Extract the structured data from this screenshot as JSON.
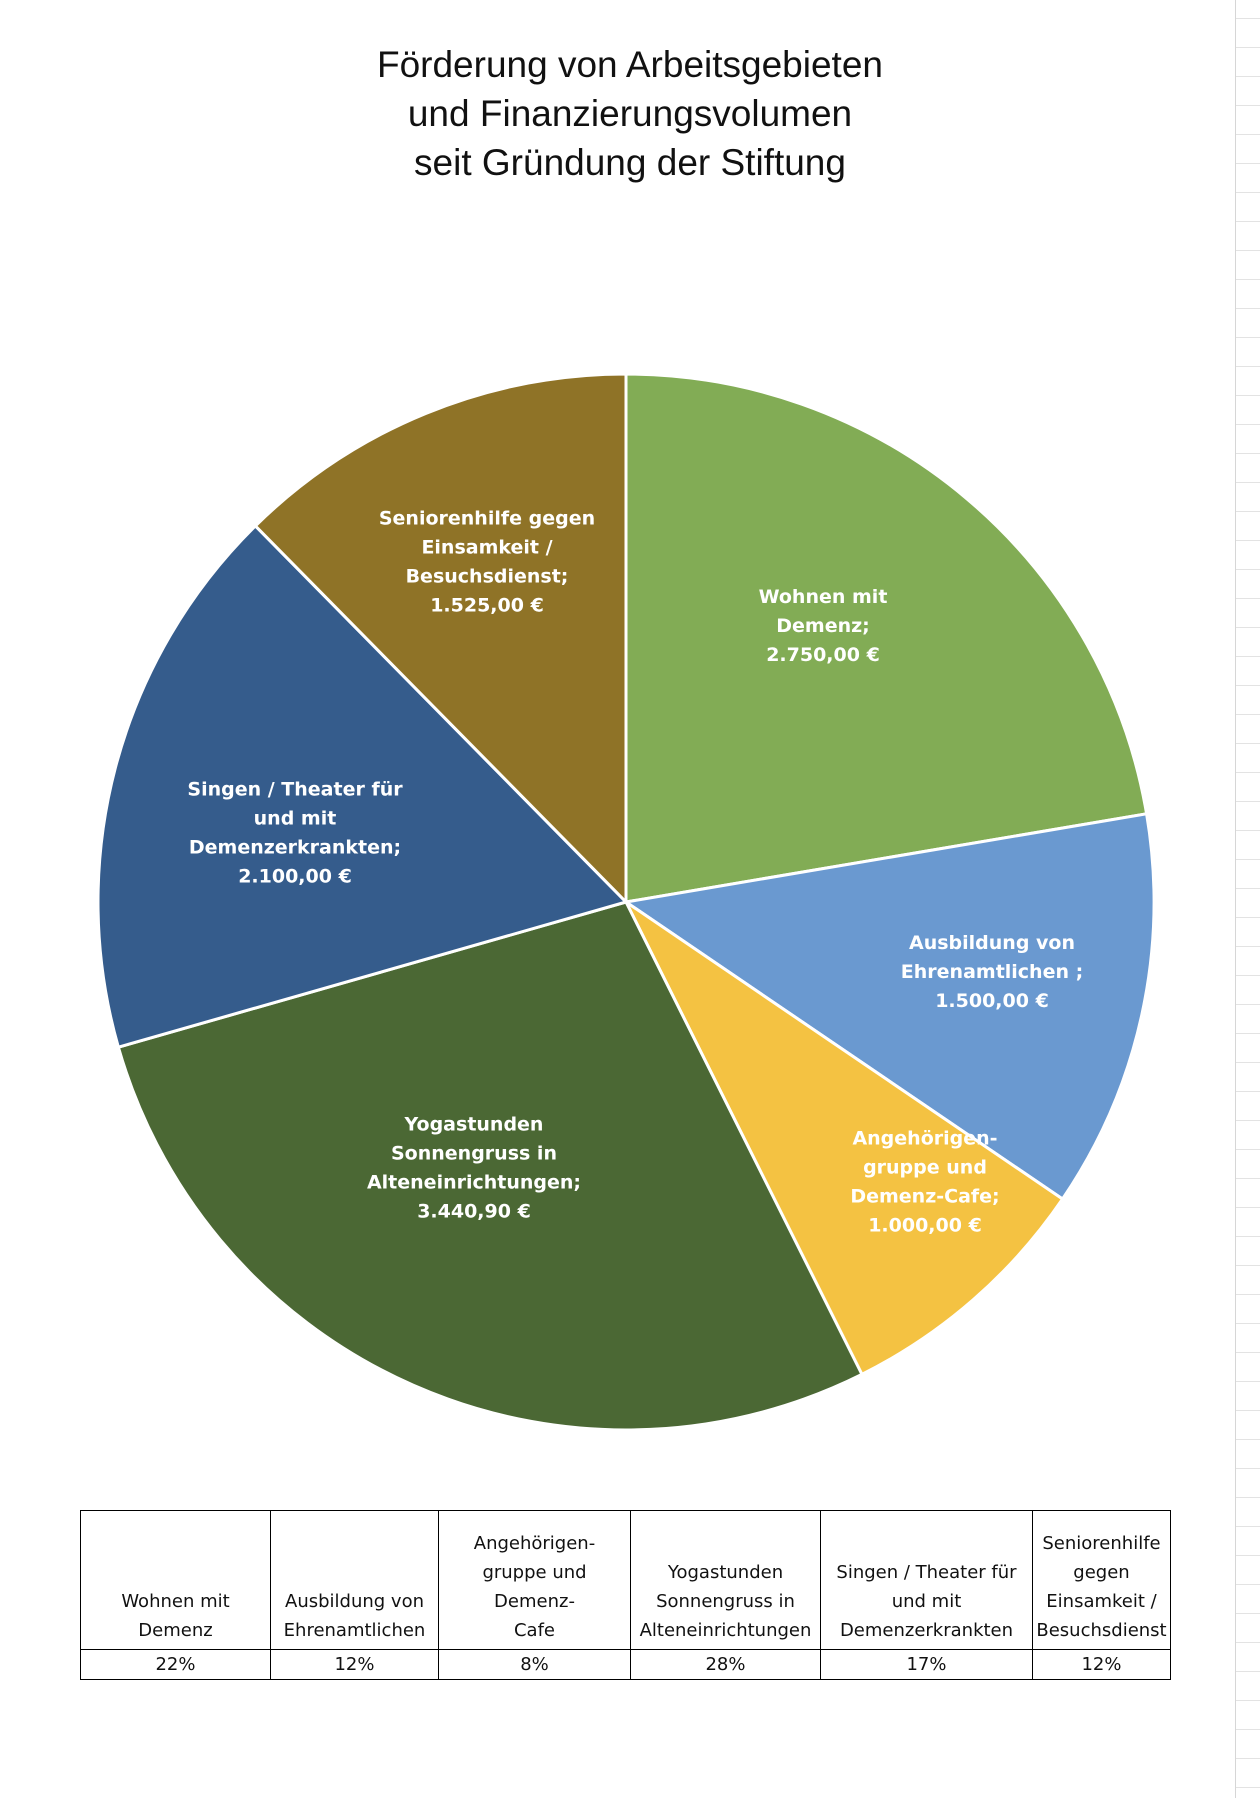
{
  "chart_data": {
    "type": "pie",
    "title_lines": [
      "Förderung von Arbeitsgebieten",
      "und Finanzierungsvolumen",
      "seit Gründung der Stiftung"
    ],
    "slices": [
      {
        "name": "Wohnen mit Demenz",
        "value": 2750.0,
        "color": "#82AC55",
        "label_lines": [
          "Wohnen mit",
          "Demenz;",
          "2.750,00 €"
        ]
      },
      {
        "name": "Ausbildung von Ehrenamtlichen",
        "value": 1500.0,
        "color": "#6A99D0",
        "label_lines": [
          "Ausbildung von",
          "Ehrenamtlichen ;",
          "1.500,00 €"
        ]
      },
      {
        "name": "Angehörigengruppe und Demenz-Cafe",
        "value": 1000.0,
        "color": "#F4C242",
        "label_lines": [
          "Angehörigen-",
          "gruppe und",
          "Demenz-Cafe;",
          "1.000,00 €"
        ]
      },
      {
        "name": "Yogastunden Sonnengruss in Alteneinrichtungen",
        "value": 3440.9,
        "color": "#4B6834",
        "label_lines": [
          "Yogastunden",
          "Sonnengruss in",
          "Alteneinrichtungen;",
          "3.440,90 €"
        ]
      },
      {
        "name": "Singen / Theater für und mit Demenzerkrankten",
        "value": 2100.0,
        "color": "#355C8C",
        "label_lines": [
          "Singen / Theater für",
          "und mit",
          "Demenzerkrankten;",
          "2.100,00 €"
        ]
      },
      {
        "name": "Seniorenhilfe gegen Einsamkeit / Besuchsdienst",
        "value": 1525.0,
        "color": "#8F7327",
        "label_lines": [
          "Seniorenhilfe gegen",
          "Einsamkeit /",
          "Besuchsdienst;",
          "1.525,00 €"
        ]
      }
    ]
  },
  "table": {
    "headers": [
      [
        "Wohnen mit",
        "Demenz"
      ],
      [
        "Ausbildung von",
        "Ehrenamtlichen"
      ],
      [
        "Angehörigen-",
        "gruppe und Demenz-",
        "Cafe"
      ],
      [
        "Yogastunden",
        "Sonnengruss in",
        "Alteneinrichtungen"
      ],
      [
        "Singen / Theater für",
        "und mit",
        "Demenzerkrankten"
      ],
      [
        "Seniorenhilfe",
        "gegen",
        "Einsamkeit /",
        "Besuchsdienst"
      ]
    ],
    "percentages": [
      "22%",
      "12%",
      "8%",
      "28%",
      "17%",
      "12%"
    ]
  }
}
